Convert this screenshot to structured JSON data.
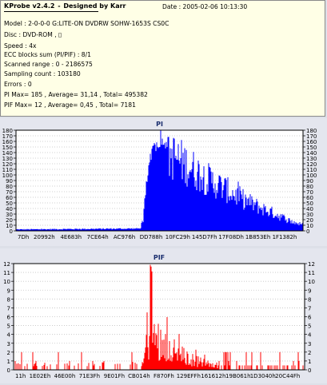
{
  "header": {
    "app_title": "KProbe v2.4.2",
    "separator": "-",
    "designer": "Designed by Karr",
    "date_label": "Date :",
    "date_value": "2005-02-06 10:13:30"
  },
  "info_lines": [
    "Model : 2-0-0-0 G:LITE-ON DVDRW SOHW-1653S CS0C",
    "Disc : DVD-ROM ,  ▯",
    "Speed : 4x",
    "ECC blocks sum (PI/PIF) : 8/1",
    "Scanned range : 0 - 2186575",
    "Sampling count : 103180",
    "Errors : 0",
    "PI Max= 185 , Average= 31,14 , Total= 495382",
    "PIF Max= 12 , Average= 0,45 , Total= 7181"
  ],
  "chart_data": [
    {
      "type": "bar",
      "title": "PI",
      "color": "#0000ff",
      "grid": true,
      "ylim": [
        0,
        180
      ],
      "yticks": [
        0,
        10,
        20,
        30,
        40,
        50,
        60,
        70,
        80,
        90,
        100,
        110,
        120,
        130,
        140,
        150,
        160,
        170,
        180
      ],
      "xtick_labels": [
        "7Dh",
        "20992h",
        "4E683h",
        "7CE64h",
        "AC976h",
        "DD788h",
        "10FC29h",
        "145D7Fh",
        "17F08Dh",
        "1B853Eh",
        "1F1382h"
      ],
      "profile": {
        "x": [
          0,
          0.43,
          0.44,
          0.455,
          0.47,
          0.5,
          0.55,
          0.6,
          0.65,
          0.7,
          0.75,
          0.8,
          0.85,
          0.9,
          0.95,
          1.0
        ],
        "y": [
          3,
          5,
          25,
          100,
          150,
          170,
          160,
          140,
          118,
          100,
          82,
          65,
          50,
          37,
          22,
          12
        ]
      }
    },
    {
      "type": "bar",
      "title": "PIF",
      "color": "#ff0000",
      "grid": true,
      "ylim": [
        0,
        12
      ],
      "yticks": [
        0,
        1,
        2,
        3,
        4,
        5,
        6,
        7,
        8,
        9,
        10,
        11,
        12
      ],
      "xtick_labels": [
        "11h",
        "1E02Eh",
        "46E00h",
        "71E3Fh",
        "9E01Fh",
        "CB014h",
        "F870Fh",
        "129EFFh",
        "161612h",
        "19B061h",
        "1D3040h",
        "20C44Fh"
      ],
      "profile": {
        "x": [
          0,
          0.2,
          0.25,
          0.3,
          0.44,
          0.455,
          0.47,
          0.5,
          0.55,
          0.6,
          0.65,
          0.7,
          1.0
        ],
        "y": [
          0.05,
          0.1,
          0.2,
          0.15,
          0.3,
          3.5,
          5,
          4,
          2.6,
          1.5,
          1,
          0.4,
          0.1
        ]
      }
    }
  ]
}
